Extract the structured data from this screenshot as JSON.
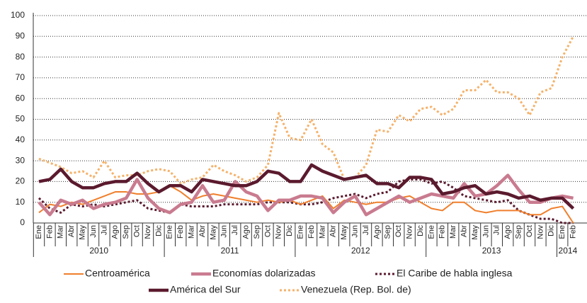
{
  "chart_data": {
    "type": "line",
    "categories": [
      "Ene",
      "Feb",
      "Mar",
      "Abr",
      "May",
      "Jun",
      "Jul",
      "Ago",
      "Sep",
      "Oct",
      "Nov",
      "Dic",
      "Ene",
      "Feb",
      "Mar",
      "Abr",
      "May",
      "Jun",
      "Jul",
      "Ago",
      "Sep",
      "Oct",
      "Nov",
      "Dic",
      "Ene",
      "Feb",
      "Mar",
      "Abr",
      "May",
      "Jun",
      "Jul",
      "Ago",
      "Sep",
      "Oct",
      "Nov",
      "Dic",
      "Ene",
      "Feb",
      "Mar",
      "Abr",
      "May",
      "Jun",
      "Jul",
      "Ago",
      "Sep",
      "Oct",
      "Nov",
      "Dic",
      "Ene",
      "Feb"
    ],
    "year_labels": [
      "2010",
      "2011",
      "2012",
      "2013",
      "2014"
    ],
    "series": [
      {
        "name": "Centroamérica",
        "color": "#f07f2c",
        "style": "solid",
        "values": [
          5,
          9,
          8,
          10,
          9,
          11,
          13,
          15,
          15,
          14,
          14,
          15,
          18,
          15,
          11,
          13,
          14,
          13,
          12,
          11,
          10,
          11,
          10,
          11,
          9,
          11,
          13,
          7,
          11,
          10,
          9,
          10,
          10,
          12,
          13,
          10,
          7,
          6,
          10,
          10,
          6,
          5,
          6,
          6,
          6,
          4,
          4,
          7,
          8,
          0
        ]
      },
      {
        "name": "Economías dolarizadas",
        "color": "#c97b8f",
        "style": "solid",
        "values": [
          10,
          4,
          11,
          9,
          11,
          7,
          9,
          10,
          12,
          21,
          12,
          7,
          5,
          9,
          10,
          18,
          10,
          11,
          20,
          15,
          13,
          6,
          11,
          11,
          13,
          13,
          12,
          5,
          10,
          13,
          4,
          7,
          10,
          13,
          10,
          12,
          14,
          13,
          12,
          19,
          13,
          14,
          18,
          23,
          16,
          10,
          10,
          12,
          13,
          12
        ]
      },
      {
        "name": "El Caribe de habla inglesa",
        "color": "#5b1a2e",
        "style": "dotted",
        "values": [
          12,
          7,
          5,
          9,
          8,
          9,
          8,
          9,
          10,
          11,
          7,
          6,
          5,
          9,
          8,
          8,
          8,
          9,
          9,
          9,
          9,
          10,
          10,
          10,
          9,
          9,
          10,
          12,
          13,
          14,
          12,
          14,
          15,
          20,
          21,
          21,
          19,
          20,
          17,
          13,
          12,
          11,
          10,
          11,
          6,
          4,
          2,
          2,
          0,
          0
        ]
      },
      {
        "name": "América del Sur",
        "color": "#5b1a2e",
        "style": "solid",
        "values": [
          20,
          21,
          26,
          20,
          17,
          17,
          19,
          20,
          20,
          24,
          19,
          15,
          18,
          18,
          15,
          21,
          20,
          19,
          18,
          18,
          20,
          25,
          24,
          20,
          20,
          28,
          25,
          23,
          21,
          22,
          23,
          19,
          19,
          17,
          22,
          22,
          21,
          14,
          15,
          17,
          18,
          14,
          15,
          14,
          12,
          13,
          11,
          12,
          12,
          7
        ]
      },
      {
        "name": "Venezuela (Rep. Bol. de)",
        "color": "#f5b26b",
        "style": "dotted",
        "values": [
          31,
          29,
          27,
          24,
          25,
          22,
          30,
          22,
          23,
          23,
          25,
          26,
          25,
          19,
          21,
          22,
          28,
          25,
          23,
          20,
          22,
          28,
          53,
          41,
          40,
          50,
          38,
          34,
          21,
          22,
          28,
          45,
          44,
          52,
          49,
          55,
          56,
          52,
          55,
          64,
          64,
          69,
          63,
          63,
          60,
          52,
          63,
          65,
          80,
          90
        ]
      }
    ],
    "ylim": [
      0,
      100
    ],
    "yticks": [
      0,
      10,
      20,
      30,
      40,
      50,
      60,
      70,
      80,
      90,
      100
    ],
    "grid": true
  }
}
